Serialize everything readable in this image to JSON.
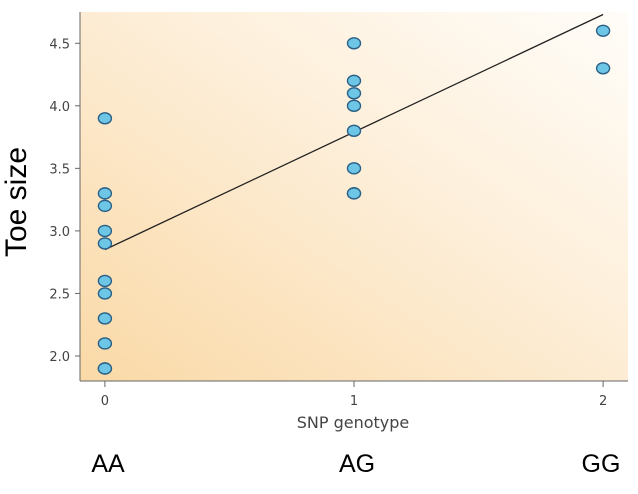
{
  "chart_data": {
    "type": "scatter",
    "title": "",
    "xlabel": "SNP genotype",
    "ylabel": "Toe size",
    "xlim": [
      -0.1,
      2.1
    ],
    "ylim": [
      1.8,
      4.75
    ],
    "x_ticks": [
      0,
      1,
      2
    ],
    "x_tick_labels": [
      "0",
      "1",
      "2"
    ],
    "y_ticks": [
      2.0,
      2.5,
      3.0,
      3.5,
      4.0,
      4.5
    ],
    "y_tick_labels": [
      "2.0",
      "2.5",
      "3.0",
      "3.5",
      "4.0",
      "4.5"
    ],
    "grid": false,
    "series": [
      {
        "x": [
          0,
          0,
          0,
          0,
          0,
          0,
          0,
          0,
          0,
          0,
          0,
          1,
          1,
          1,
          1,
          1,
          1,
          1,
          1,
          2,
          2
        ],
        "y": [
          3.9,
          3.3,
          3.2,
          3.0,
          2.9,
          2.6,
          2.5,
          2.3,
          2.1,
          1.9,
          1.9,
          4.5,
          4.2,
          4.1,
          4.0,
          3.8,
          3.5,
          3.3,
          3.3,
          4.6,
          4.3
        ]
      }
    ],
    "fit_line": {
      "x": [
        0,
        2
      ],
      "y": [
        2.85,
        4.73
      ]
    },
    "genotype_labels": [
      "AA",
      "AG",
      "GG"
    ],
    "colors": {
      "marker_fill": "#6ec6e6",
      "marker_stroke": "#2a5f86",
      "line": "#222222",
      "background_warm": "#fad9a6",
      "background_light": "#fffdf9"
    }
  }
}
